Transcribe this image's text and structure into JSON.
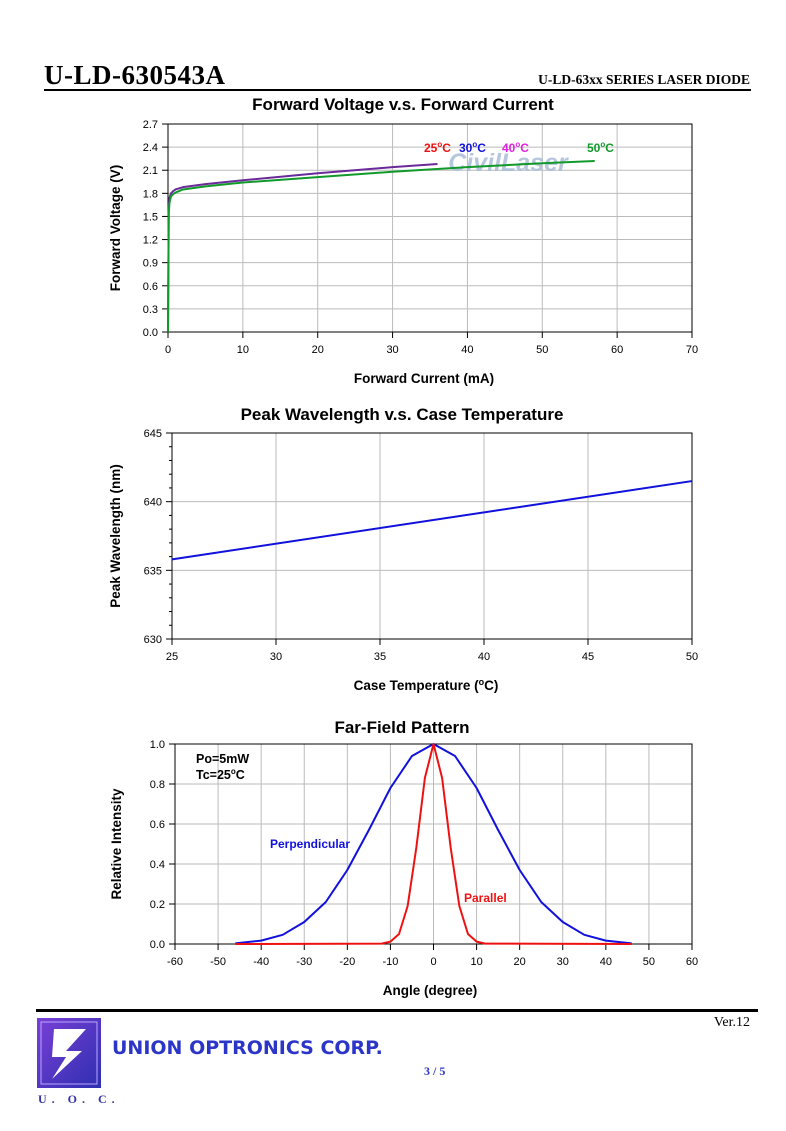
{
  "header": {
    "part_number": "U-LD-630543A",
    "series_title": "U-LD-63xx SERIES LASER DIODE"
  },
  "footer": {
    "version": "Ver.12",
    "company": "UNION OPTRONICS CORP.",
    "logo_text": "U. O. C.",
    "page": "3 / 5"
  },
  "colors": {
    "red": "#ee1111",
    "blue": "#1111dd",
    "magenta": "#dd22dd",
    "green": "#11992a",
    "purple_curve": "#6a2a9a",
    "grid": "#bbbbbb"
  },
  "watermark": "CivilLaser",
  "chart_data": [
    {
      "type": "line",
      "title": "Forward Voltage v.s. Forward Current",
      "xlabel": "Forward Current (mA)",
      "ylabel": "Forward Voltage (V)",
      "xlim": [
        0,
        70
      ],
      "ylim": [
        0,
        2.7
      ],
      "xticks": [
        "0",
        "10",
        "20",
        "30",
        "40",
        "50",
        "60",
        "70"
      ],
      "yticks": [
        "0.0",
        "0.3",
        "0.6",
        "0.9",
        "1.2",
        "1.5",
        "1.8",
        "2.1",
        "2.4",
        "2.7"
      ],
      "grid": true,
      "legend": [
        {
          "label": "25",
          "unit_label": "C",
          "color": "#ee1111"
        },
        {
          "label": "30",
          "unit_label": "C",
          "color": "#1111dd"
        },
        {
          "label": "40",
          "unit_label": "C",
          "color": "#dd22dd"
        },
        {
          "label": "50",
          "unit_label": "C",
          "color": "#11992a"
        }
      ],
      "series": [
        {
          "color": "#6a2a9a",
          "x": [
            0,
            0.1,
            0.2,
            0.4,
            0.7,
            1,
            2,
            5,
            10,
            20,
            30,
            36
          ],
          "y": [
            0,
            1.62,
            1.74,
            1.8,
            1.83,
            1.85,
            1.88,
            1.92,
            1.97,
            2.06,
            2.14,
            2.18
          ]
        },
        {
          "color": "#11992a",
          "x": [
            0,
            0.1,
            0.2,
            0.4,
            0.7,
            1,
            2,
            5,
            10,
            20,
            30,
            40,
            50,
            57
          ],
          "y": [
            0,
            1.55,
            1.68,
            1.76,
            1.79,
            1.81,
            1.85,
            1.89,
            1.94,
            2.01,
            2.08,
            2.14,
            2.19,
            2.22
          ]
        }
      ]
    },
    {
      "type": "line",
      "title": "Peak Wavelength v.s. Case Temperature",
      "xlabel": "Case Temperature (",
      "xlabel_unit": "C)",
      "ylabel": "Peak Wavelength (nm)",
      "xlim": [
        25,
        50
      ],
      "ylim": [
        630,
        645
      ],
      "xticks": [
        "25",
        "30",
        "35",
        "40",
        "45",
        "50"
      ],
      "yticks": [
        "630",
        "635",
        "640",
        "645"
      ],
      "grid": true,
      "series": [
        {
          "color": "#1111dd",
          "x": [
            25,
            50
          ],
          "y": [
            635.8,
            641.5
          ]
        }
      ]
    },
    {
      "type": "line",
      "title": "Far-Field Pattern",
      "xlabel": "Angle (degree)",
      "ylabel": "Relative Intensity",
      "xlim": [
        -60,
        60
      ],
      "ylim": [
        0,
        1.0
      ],
      "xticks": [
        "-60",
        "-50",
        "-40",
        "-30",
        "-20",
        "-10",
        "0",
        "10",
        "20",
        "30",
        "40",
        "50",
        "60"
      ],
      "yticks": [
        "0.0",
        "0.2",
        "0.4",
        "0.6",
        "0.8",
        "1.0"
      ],
      "grid": true,
      "annotation_line1": "Po=5mW",
      "annotation_line2_prefix": "Tc=25",
      "annotation_line2_suffix": "C",
      "series": [
        {
          "name": "Perpendicular",
          "color": "#1111dd",
          "x": [
            -46,
            -40,
            -35,
            -30,
            -25,
            -20,
            -15,
            -10,
            -5,
            0,
            5,
            10,
            15,
            20,
            25,
            30,
            35,
            40,
            46
          ],
          "y": [
            0.003,
            0.017,
            0.046,
            0.11,
            0.21,
            0.37,
            0.57,
            0.78,
            0.94,
            1.0,
            0.94,
            0.78,
            0.57,
            0.37,
            0.21,
            0.11,
            0.046,
            0.017,
            0.003
          ]
        },
        {
          "name": "Parallel",
          "color": "#ee1111",
          "x": [
            -46,
            -12,
            -10,
            -8,
            -6,
            -4,
            -2,
            0,
            2,
            4,
            6,
            8,
            10,
            12,
            46
          ],
          "y": [
            0,
            0.002,
            0.012,
            0.05,
            0.19,
            0.48,
            0.83,
            1.0,
            0.83,
            0.48,
            0.19,
            0.05,
            0.012,
            0.002,
            0
          ]
        }
      ]
    }
  ]
}
